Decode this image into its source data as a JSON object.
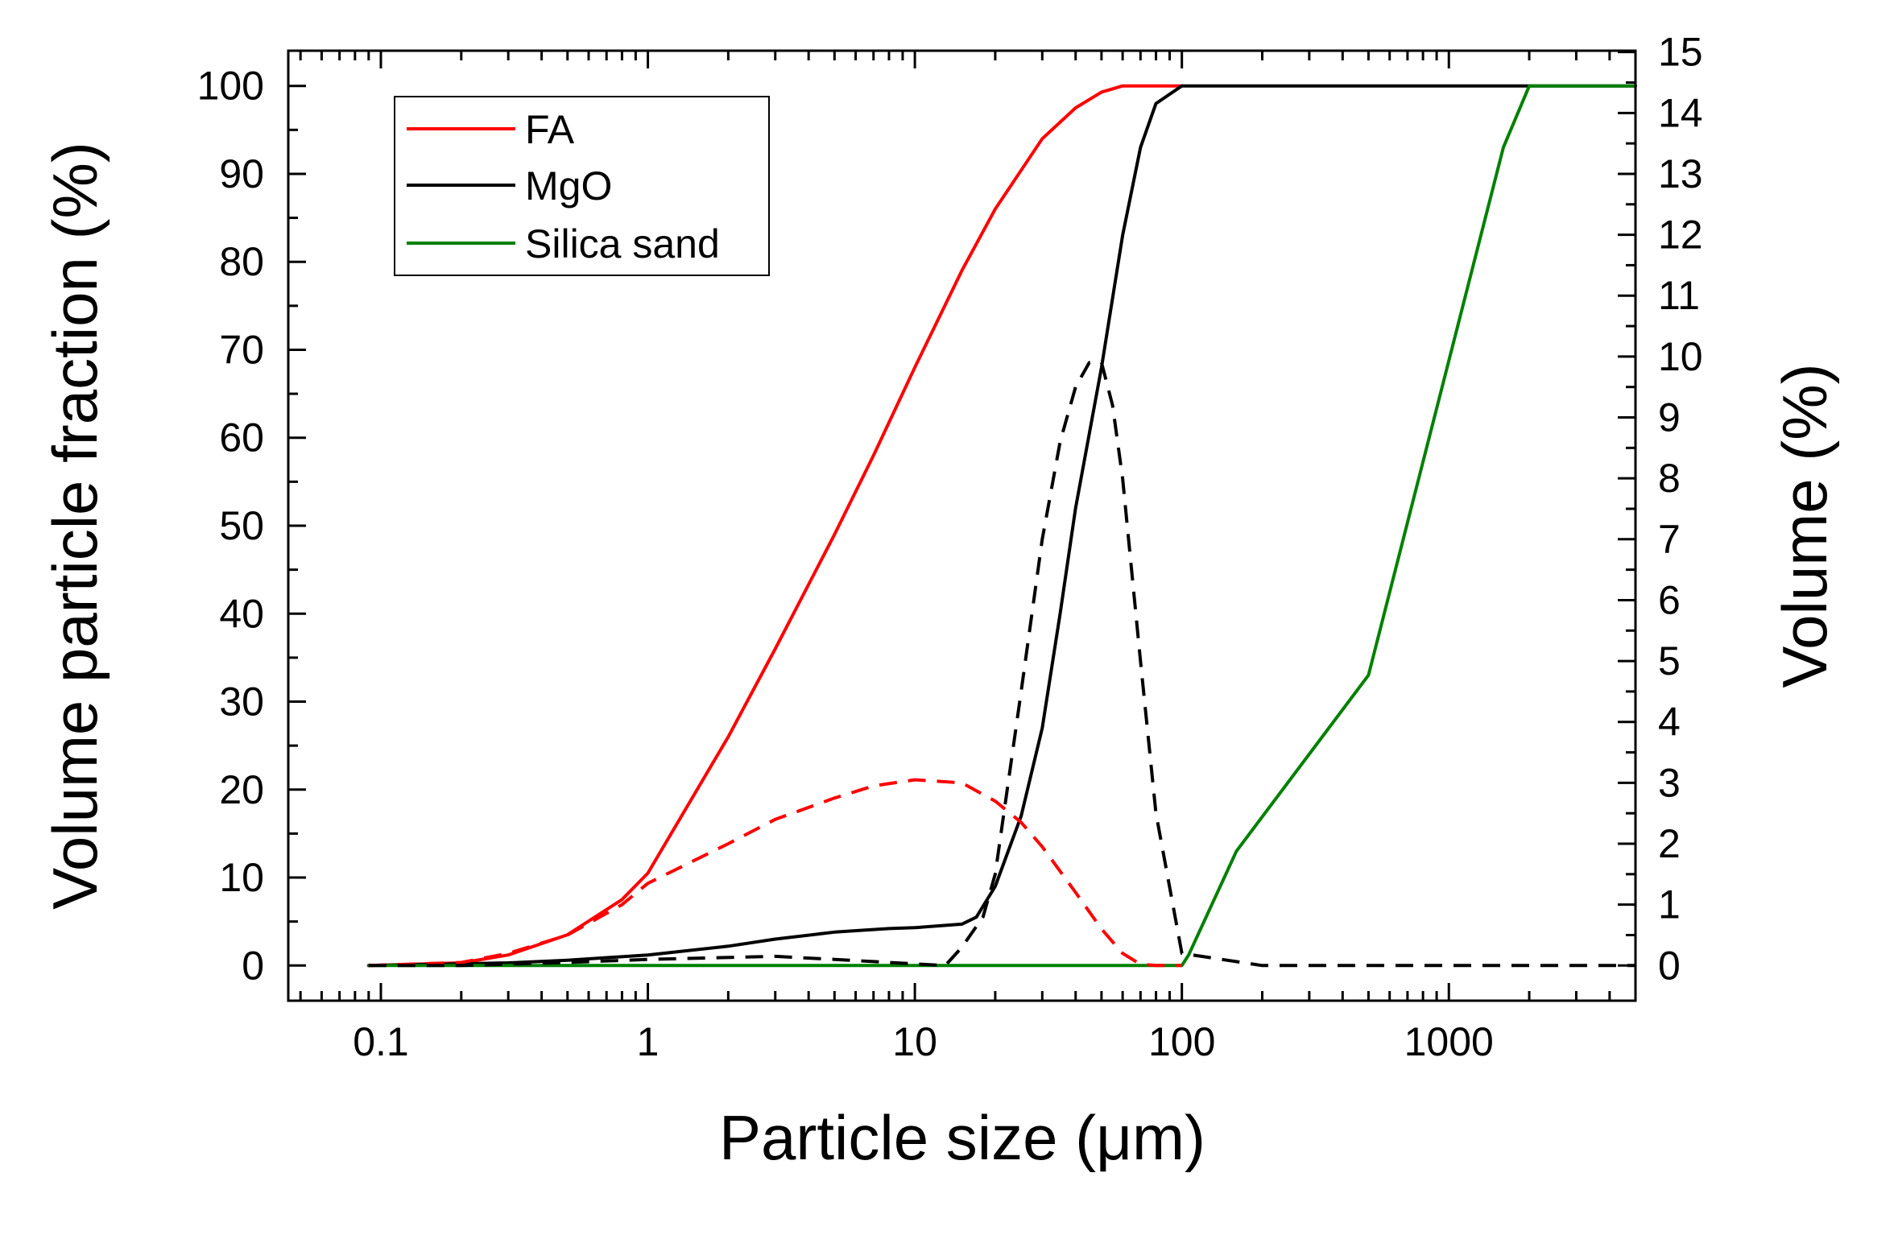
{
  "chart_data": {
    "type": "line",
    "title": "",
    "xlabel": "Particle size (μm)",
    "ylabel": "Volume particle fraction (%)",
    "y2label": "Volume (%)",
    "xscale": "log",
    "xlim": [
      0.045,
      5000
    ],
    "ylim": [
      -4,
      104
    ],
    "y2lim": [
      -0.5778,
      15.0222
    ],
    "xticks": [
      0.1,
      1,
      10,
      100,
      1000
    ],
    "xtick_labels": [
      "0.1",
      "1",
      "10",
      "100",
      "1000"
    ],
    "yticks": [
      0,
      10,
      20,
      30,
      40,
      50,
      60,
      70,
      80,
      90,
      100
    ],
    "ytick_labels": [
      "0",
      "10",
      "20",
      "30",
      "40",
      "50",
      "60",
      "70",
      "80",
      "90",
      "100"
    ],
    "y2ticks": [
      0,
      1,
      2,
      3,
      4,
      5,
      6,
      7,
      8,
      9,
      10,
      11,
      12,
      13,
      14,
      15
    ],
    "y2tick_labels": [
      "0",
      "1",
      "2",
      "3",
      "4",
      "5",
      "6",
      "7",
      "8",
      "9",
      "10",
      "11",
      "12",
      "13",
      "14",
      "15"
    ],
    "legend": {
      "position": "top-left",
      "entries": [
        "FA",
        "MgO",
        "Silica sand"
      ]
    },
    "series": [
      {
        "name": "FA",
        "kind": "cumulative",
        "axis": "left",
        "style": "solid",
        "color": "#ff0000",
        "x": [
          0.09,
          0.2,
          0.3,
          0.5,
          0.8,
          1,
          2,
          3,
          5,
          7,
          10,
          15,
          20,
          30,
          40,
          50,
          60,
          80,
          100
        ],
        "y": [
          0,
          0.3,
          1.2,
          3.5,
          7.5,
          10.5,
          26,
          36,
          49,
          58,
          68,
          79,
          86,
          94,
          97.5,
          99.3,
          100,
          100,
          100
        ]
      },
      {
        "name": "MgO",
        "kind": "cumulative",
        "axis": "left",
        "style": "solid",
        "color": "#000000",
        "x": [
          0.09,
          0.3,
          0.5,
          1,
          2,
          3,
          5,
          8,
          10,
          15,
          17,
          20,
          25,
          30,
          35,
          40,
          50,
          60,
          70,
          80,
          100,
          200,
          5000
        ],
        "y": [
          0,
          0.3,
          0.6,
          1.2,
          2.2,
          3.0,
          3.8,
          4.2,
          4.3,
          4.7,
          5.5,
          9,
          17,
          27,
          40,
          52,
          68,
          83,
          93,
          98,
          100,
          100,
          100
        ]
      },
      {
        "name": "Silica sand",
        "kind": "cumulative",
        "axis": "left",
        "style": "solid",
        "color": "#008000",
        "x": [
          0.09,
          100,
          106,
          160,
          500,
          1600,
          2000,
          5000
        ],
        "y": [
          0,
          0,
          1.2,
          13,
          33,
          93,
          100,
          100
        ]
      },
      {
        "name": "FA",
        "kind": "distribution",
        "axis": "right",
        "style": "dashed",
        "color": "#ff0000",
        "x": [
          0.09,
          0.2,
          0.3,
          0.5,
          0.8,
          1,
          2,
          3,
          5,
          7,
          10,
          15,
          20,
          25,
          30,
          40,
          50,
          60,
          70,
          80,
          100
        ],
        "y": [
          0,
          0.05,
          0.2,
          0.5,
          1.0,
          1.35,
          2.0,
          2.4,
          2.75,
          2.95,
          3.05,
          3.0,
          2.7,
          2.35,
          1.95,
          1.2,
          0.6,
          0.2,
          0.02,
          0,
          0
        ]
      },
      {
        "name": "MgO",
        "kind": "distribution",
        "axis": "right",
        "style": "dashed",
        "color": "#000000",
        "x": [
          0.09,
          0.2,
          0.5,
          1,
          3,
          5,
          8,
          13,
          15,
          18,
          20,
          25,
          30,
          35,
          40,
          45,
          50,
          55,
          60,
          70,
          80,
          100,
          200,
          500,
          1000,
          5000
        ],
        "y": [
          0,
          0,
          0.05,
          0.1,
          0.15,
          0.1,
          0.05,
          0,
          0.3,
          0.8,
          1.5,
          4.5,
          7.0,
          8.6,
          9.5,
          9.9,
          9.9,
          9.2,
          8.0,
          5.0,
          2.5,
          0.2,
          0,
          0,
          0,
          0
        ]
      }
    ]
  }
}
